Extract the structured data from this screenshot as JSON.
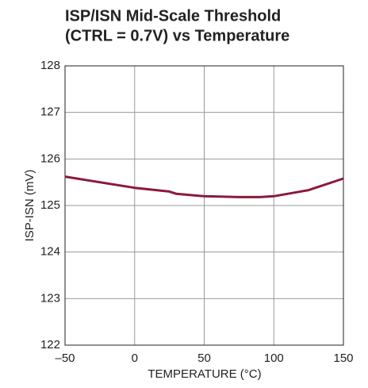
{
  "chart_data": {
    "type": "line",
    "title": [
      "ISP/ISN Mid-Scale Threshold",
      "(CTRL = 0.7V) vs Temperature"
    ],
    "x_label": "TEMPERATURE (°C)",
    "y_label": "ISP-ISN (mV)",
    "x": [
      -50,
      -25,
      0,
      25,
      30,
      50,
      75,
      90,
      100,
      125,
      150
    ],
    "series": [
      {
        "color": "#8b1a3a",
        "values": [
          125.62,
          125.5,
          125.38,
          125.3,
          125.25,
          125.2,
          125.18,
          125.18,
          125.2,
          125.33,
          125.58
        ]
      }
    ],
    "xlim": [
      -50,
      150
    ],
    "xticks": [
      {
        "value": -50,
        "label": "–50"
      },
      0,
      50,
      100,
      150
    ],
    "ylim": [
      122,
      128
    ],
    "yticks": [
      122,
      123,
      124,
      125,
      126,
      127,
      128
    ],
    "grid": true
  }
}
